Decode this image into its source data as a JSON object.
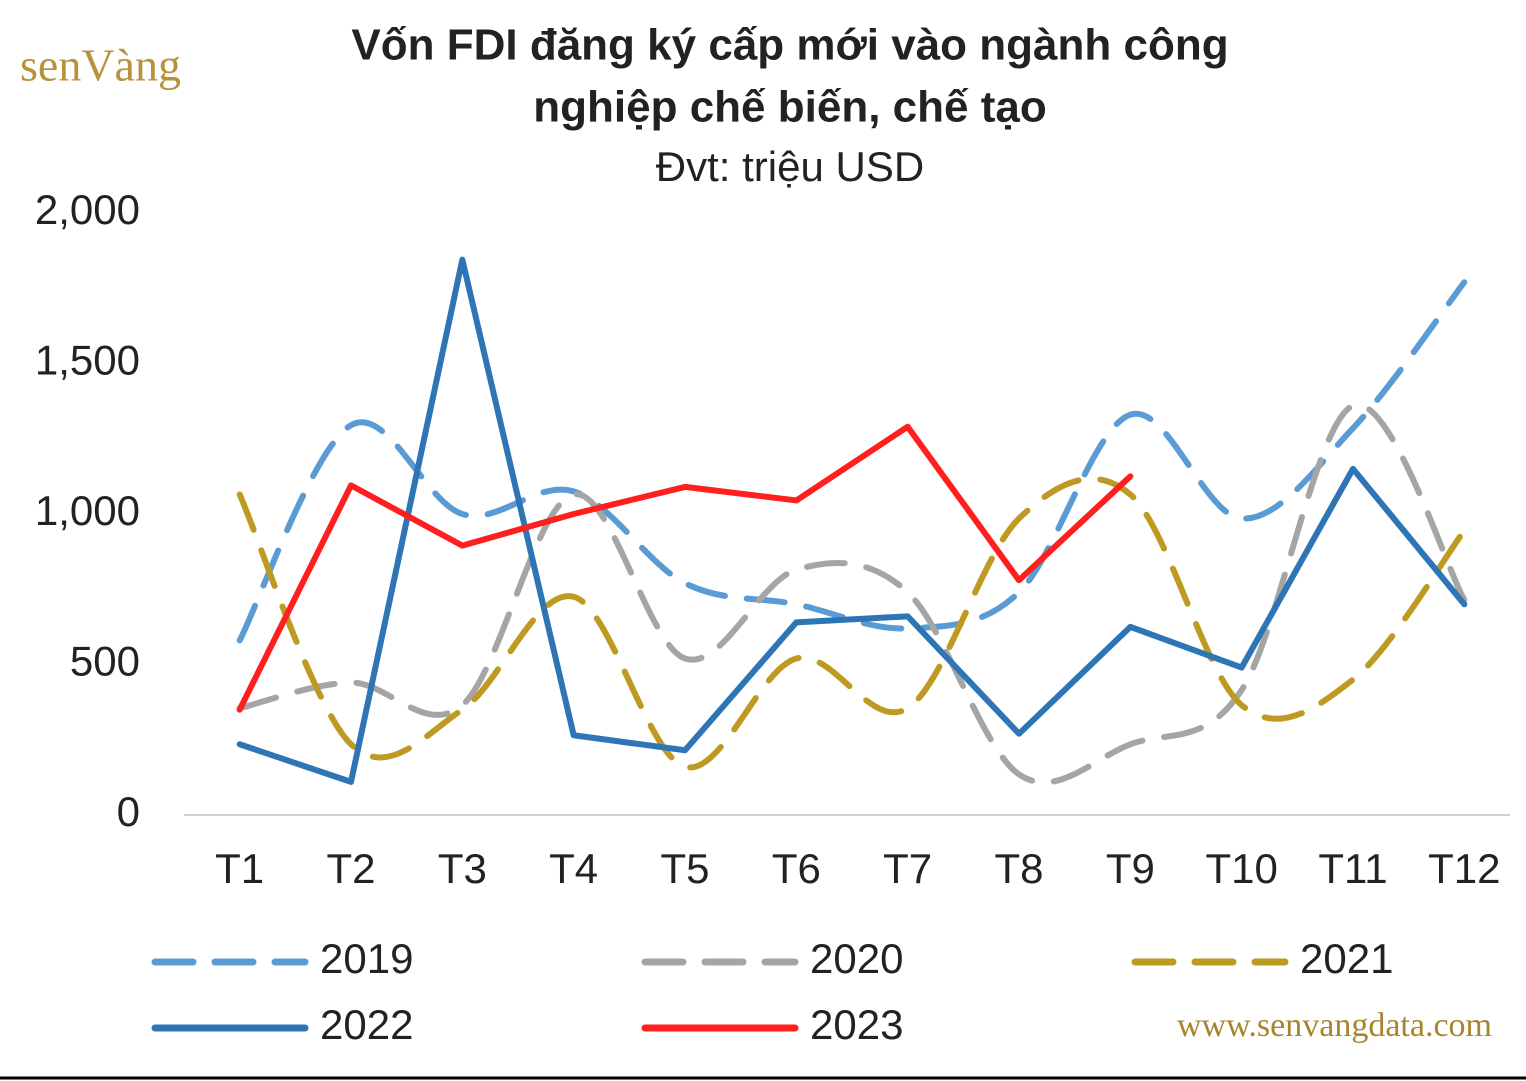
{
  "chart_data": {
    "type": "line",
    "title": [
      "Vốn FDI đăng ký cấp mới vào ngành công",
      "nghiệp chế biến, chế tạo"
    ],
    "subtitle": "Đvt: triệu USD",
    "logo": "senVàng",
    "source": "www.senvangdata.com",
    "categories": [
      "T1",
      "T2",
      "T3",
      "T4",
      "T5",
      "T6",
      "T7",
      "T8",
      "T9",
      "T10",
      "T11",
      "T12"
    ],
    "ylim": [
      0,
      2000
    ],
    "yticks": [
      0,
      500,
      {
        "value": 1000,
        "label": "1,000"
      },
      {
        "value": 1500,
        "label": "1,500"
      },
      {
        "value": 2000,
        "label": "2,000"
      }
    ],
    "series": [
      {
        "name": "2019",
        "color": "#5b9bd5",
        "dashed": true,
        "smooth": true,
        "values": [
          580,
          1295,
          1000,
          1075,
          770,
          700,
          620,
          740,
          1330,
          985,
          1285,
          1770
        ]
      },
      {
        "name": "2020",
        "color": "#a5a5a5",
        "dashed": true,
        "smooth": true,
        "values": [
          355,
          440,
          365,
          1065,
          520,
          815,
          740,
          135,
          235,
          415,
          1360,
          715
        ]
      },
      {
        "name": "2021",
        "color": "#bf9a22",
        "dashed": true,
        "smooth": true,
        "values": [
          1065,
          235,
          350,
          725,
          160,
          520,
          355,
          985,
          1065,
          365,
          450,
          945
        ]
      },
      {
        "name": "2022",
        "color": "#2e75b6",
        "dashed": false,
        "smooth": false,
        "values": [
          235,
          110,
          1845,
          265,
          215,
          640,
          660,
          270,
          625,
          490,
          1150,
          700
        ]
      },
      {
        "name": "2023",
        "color": "#ff1f1f",
        "dashed": false,
        "smooth": false,
        "values": [
          350,
          1095,
          895,
          1000,
          1090,
          1045,
          1290,
          780,
          1125,
          null,
          null,
          null
        ]
      }
    ]
  }
}
